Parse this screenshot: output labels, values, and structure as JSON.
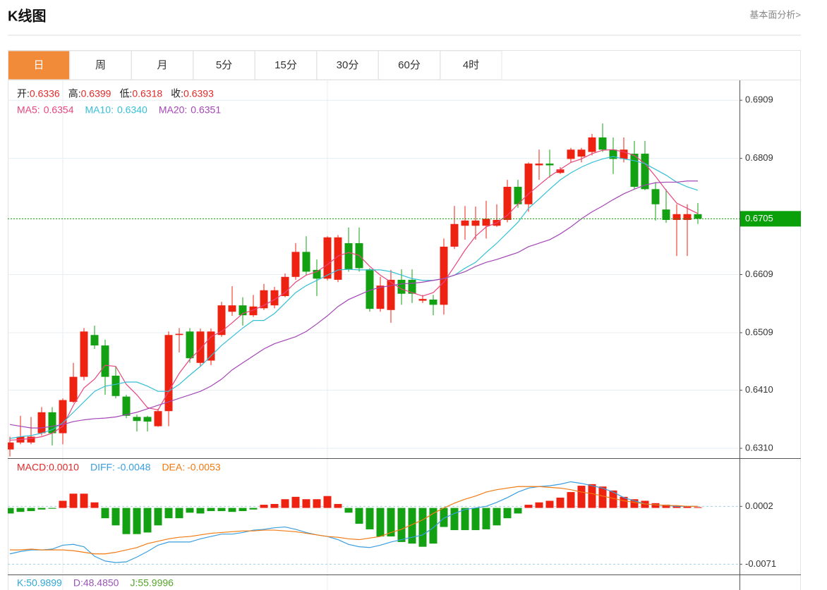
{
  "header": {
    "title": "K线图",
    "link": "基本面分析>"
  },
  "tabs": {
    "items": [
      "日",
      "周",
      "月",
      "5分",
      "15分",
      "30分",
      "60分",
      "4时"
    ],
    "active": 0,
    "active_color": "#f18b3a"
  },
  "chart_data": [
    {
      "type": "candlestick",
      "readout": [
        {
          "name": "开:",
          "value": 0.6336
        },
        {
          "name": "高:",
          "value": 0.6399
        },
        {
          "name": "低:",
          "value": 0.6318
        },
        {
          "name": "收:",
          "value": 0.6393
        }
      ],
      "readout_color": "#e02a2a",
      "up_color": "#ee2211",
      "down_color": "#13a013",
      "ylim": [
        0.6293,
        0.6942
      ],
      "yticks": [
        0.6909,
        0.6809,
        0.6609,
        0.6509,
        {
          "value": 0.641,
          "label": "0.6410"
        },
        {
          "value": 0.631,
          "label": "0.6310"
        }
      ],
      "grid": true,
      "last_price": 0.6705,
      "last_price_color": "#0aa00a",
      "open": [
        0.6308,
        0.632,
        0.632,
        0.6336,
        0.6372,
        0.6336,
        0.639,
        0.6433,
        0.6505,
        0.6487,
        0.6435,
        0.6399,
        0.6364,
        0.6364,
        0.6348,
        0.6374,
        0.6505,
        0.6511,
        0.6457,
        0.6461,
        0.6505,
        0.6545,
        0.6556,
        0.6539,
        0.6551,
        0.6556,
        0.6572,
        0.6605,
        0.6648,
        0.6617,
        0.6602,
        0.66,
        0.6663,
        0.6663,
        0.6618,
        0.655,
        0.6548,
        0.66,
        0.66,
        0.6564,
        0.6566,
        0.6557,
        0.6657,
        0.6693,
        0.6693,
        0.6693,
        0.6693,
        0.6703,
        0.676,
        0.673,
        0.6797,
        0.68,
        0.6784,
        0.6808,
        0.6812,
        0.682,
        0.6845,
        0.6824,
        0.6808,
        0.6817,
        0.6817,
        0.6756,
        0.6721,
        0.6703,
        0.6703,
        0.6713
      ],
      "high": [
        0.633,
        0.6366,
        0.6364,
        0.6381,
        0.6381,
        0.6396,
        0.6457,
        0.6517,
        0.6521,
        0.6497,
        0.6451,
        0.6402,
        0.6368,
        0.6366,
        0.6378,
        0.6511,
        0.6517,
        0.6517,
        0.6516,
        0.6516,
        0.6562,
        0.6589,
        0.657,
        0.6574,
        0.6593,
        0.6588,
        0.6611,
        0.6663,
        0.6675,
        0.6635,
        0.6675,
        0.6677,
        0.669,
        0.669,
        0.662,
        0.6605,
        0.6617,
        0.6618,
        0.6618,
        0.6574,
        0.6574,
        0.6671,
        0.6727,
        0.6727,
        0.6726,
        0.6736,
        0.673,
        0.6772,
        0.6772,
        0.6802,
        0.6824,
        0.6824,
        0.6794,
        0.6827,
        0.6827,
        0.6851,
        0.6869,
        0.6845,
        0.6845,
        0.6839,
        0.6839,
        0.6768,
        0.6756,
        0.673,
        0.673,
        0.6732
      ],
      "low": [
        0.6296,
        0.6317,
        0.6317,
        0.6332,
        0.6315,
        0.6317,
        0.6388,
        0.6427,
        0.6481,
        0.6402,
        0.6396,
        0.6362,
        0.6339,
        0.6339,
        0.6347,
        0.6348,
        0.6475,
        0.6457,
        0.6451,
        0.6453,
        0.6502,
        0.6538,
        0.6521,
        0.6536,
        0.6548,
        0.6551,
        0.657,
        0.66,
        0.6608,
        0.6572,
        0.6599,
        0.6596,
        0.6614,
        0.6614,
        0.6545,
        0.6545,
        0.6526,
        0.6557,
        0.656,
        0.656,
        0.6539,
        0.654,
        0.6653,
        0.6669,
        0.6669,
        0.6671,
        0.6691,
        0.6699,
        0.6724,
        0.6717,
        0.6772,
        0.6776,
        0.6782,
        0.6802,
        0.6802,
        0.6814,
        0.682,
        0.6782,
        0.6802,
        0.6756,
        0.6754,
        0.6702,
        0.6698,
        0.6641,
        0.6641,
        0.6696
      ],
      "close": [
        0.632,
        0.633,
        0.633,
        0.6372,
        0.6336,
        0.6393,
        0.6433,
        0.6511,
        0.6487,
        0.6433,
        0.64,
        0.6366,
        0.6357,
        0.6356,
        0.6374,
        0.6505,
        0.6507,
        0.6465,
        0.6511,
        0.6511,
        0.6556,
        0.6556,
        0.6539,
        0.6554,
        0.6582,
        0.6582,
        0.6605,
        0.6648,
        0.6614,
        0.6602,
        0.6673,
        0.6673,
        0.6618,
        0.662,
        0.655,
        0.659,
        0.66,
        0.6576,
        0.6576,
        0.6567,
        0.6557,
        0.6657,
        0.6696,
        0.6702,
        0.6702,
        0.6705,
        0.6703,
        0.676,
        0.673,
        0.68,
        0.68,
        0.6797,
        0.679,
        0.6824,
        0.6824,
        0.6845,
        0.6824,
        0.6808,
        0.6824,
        0.676,
        0.6756,
        0.673,
        0.6703,
        0.6713,
        0.6713,
        0.6705
      ],
      "series": [
        {
          "name": "MA5:",
          "color": "#e8457e",
          "readout": 0.6354,
          "values": [
            0.6324,
            0.6325,
            0.6327,
            0.633,
            0.6336,
            0.6348,
            0.6384,
            0.6414,
            0.6429,
            0.6453,
            0.6451,
            0.642,
            0.6402,
            0.638,
            0.6376,
            0.6408,
            0.6439,
            0.6463,
            0.6481,
            0.6502,
            0.6511,
            0.6526,
            0.6542,
            0.6548,
            0.6556,
            0.6566,
            0.6578,
            0.6596,
            0.6608,
            0.6614,
            0.6626,
            0.6641,
            0.6647,
            0.6642,
            0.6623,
            0.6608,
            0.6596,
            0.6584,
            0.6578,
            0.6572,
            0.6578,
            0.6596,
            0.6623,
            0.6651,
            0.6675,
            0.6691,
            0.6698,
            0.6711,
            0.673,
            0.6748,
            0.6763,
            0.6778,
            0.679,
            0.6802,
            0.6808,
            0.6817,
            0.6823,
            0.6824,
            0.682,
            0.6814,
            0.68,
            0.6778,
            0.6754,
            0.6732,
            0.6723,
            0.6714
          ]
        },
        {
          "name": "MA10:",
          "color": "#35bfd6",
          "readout": {
            "value": 0.634,
            "label": "0.6340"
          },
          "values": [
            0.6327,
            0.633,
            0.6332,
            0.6336,
            0.6342,
            0.6354,
            0.6372,
            0.639,
            0.6408,
            0.6417,
            0.642,
            0.6424,
            0.6424,
            0.6417,
            0.6408,
            0.6408,
            0.642,
            0.6436,
            0.6451,
            0.6469,
            0.6487,
            0.6502,
            0.6517,
            0.653,
            0.653,
            0.6542,
            0.656,
            0.6578,
            0.659,
            0.6599,
            0.6608,
            0.6617,
            0.6618,
            0.6617,
            0.6617,
            0.6617,
            0.6614,
            0.6608,
            0.6602,
            0.6599,
            0.6599,
            0.6602,
            0.6608,
            0.662,
            0.663,
            0.6647,
            0.6663,
            0.6681,
            0.6699,
            0.6723,
            0.6739,
            0.6756,
            0.6772,
            0.6784,
            0.6794,
            0.6802,
            0.6808,
            0.6812,
            0.6808,
            0.6805,
            0.68,
            0.679,
            0.678,
            0.6768,
            0.676,
            0.6754
          ]
        },
        {
          "name": "MA20:",
          "color": "#a446b6",
          "readout": 0.6351,
          "values": [
            0.6351,
            0.6348,
            0.6345,
            0.6345,
            0.6348,
            0.6351,
            0.6356,
            0.6359,
            0.6361,
            0.6362,
            0.6364,
            0.6368,
            0.6372,
            0.6378,
            0.6384,
            0.639,
            0.6396,
            0.6402,
            0.6408,
            0.6417,
            0.6429,
            0.6445,
            0.6457,
            0.6469,
            0.6481,
            0.649,
            0.6496,
            0.6502,
            0.6511,
            0.6524,
            0.6538,
            0.6554,
            0.6566,
            0.6574,
            0.6582,
            0.6587,
            0.659,
            0.6593,
            0.6594,
            0.6596,
            0.6599,
            0.6602,
            0.6608,
            0.6614,
            0.6623,
            0.663,
            0.6635,
            0.6641,
            0.6647,
            0.6657,
            0.6663,
            0.6669,
            0.6679,
            0.6691,
            0.6705,
            0.6717,
            0.6727,
            0.6738,
            0.6748,
            0.6756,
            0.6763,
            0.6767,
            0.6768,
            0.6768,
            0.677,
            0.677
          ]
        }
      ]
    },
    {
      "type": "macd",
      "ylim": [
        -0.0084,
        0.0061
      ],
      "yticks": [
        0.0002,
        -0.0071
      ],
      "grid": true,
      "histogram": {
        "name": "MACD:",
        "color": "#e02a2a",
        "readout": {
          "value": 0.001,
          "label": "0.0010"
        },
        "up_color": "#ee2211",
        "down_color": "#13a013",
        "values": [
          -0.0007,
          -0.0005,
          -0.0004,
          -0.0002,
          -0.0001,
          0.0009,
          0.0018,
          0.0018,
          0.0007,
          -0.0013,
          -0.0022,
          -0.0033,
          -0.0033,
          -0.0031,
          -0.0022,
          -0.0013,
          -0.0013,
          -0.0006,
          -0.0007,
          -0.0004,
          -0.0004,
          -0.0005,
          -0.0004,
          -0.0002,
          0.0004,
          0.0005,
          0.0011,
          0.0014,
          0.0011,
          0.0011,
          0.0015,
          0.0005,
          -0.0006,
          -0.002,
          -0.0027,
          -0.0036,
          -0.0036,
          -0.0043,
          -0.0045,
          -0.0049,
          -0.0045,
          -0.0024,
          -0.0028,
          -0.0028,
          -0.0028,
          -0.0027,
          -0.0022,
          -0.0013,
          -0.0007,
          0.0004,
          0.0007,
          0.0009,
          0.0013,
          0.002,
          0.0028,
          0.003,
          0.0027,
          0.0022,
          0.0014,
          0.0011,
          0.0009,
          0.0006,
          0.0004,
          0.0003,
          0.0002,
          0.0001
        ]
      },
      "series": [
        {
          "name": "DIFF:",
          "color": "#3a9ee0",
          "readout": -0.0048,
          "values": [
            -0.0058,
            -0.0055,
            -0.0053,
            -0.0053,
            -0.0052,
            -0.0047,
            -0.0046,
            -0.0049,
            -0.0061,
            -0.0067,
            -0.0069,
            -0.0068,
            -0.0062,
            -0.0055,
            -0.0047,
            -0.0043,
            -0.0043,
            -0.0043,
            -0.0039,
            -0.0036,
            -0.0033,
            -0.0033,
            -0.0031,
            -0.0028,
            -0.0027,
            -0.0025,
            -0.0024,
            -0.0027,
            -0.0031,
            -0.0034,
            -0.0036,
            -0.004,
            -0.0046,
            -0.0049,
            -0.005,
            -0.0047,
            -0.0043,
            -0.004,
            -0.0037,
            -0.0034,
            -0.0025,
            -0.0013,
            -0.0007,
            -0.0002,
            0,
            0.0002,
            0.0007,
            0.0013,
            0.002,
            0.0025,
            0.0027,
            0.0028,
            0.003,
            0.0033,
            0.0031,
            0.0028,
            0.0025,
            0.002,
            0.0013,
            0.0009,
            0.0005,
            0.0004,
            0.0003,
            0.0002,
            0.0002,
            0.0002
          ]
        },
        {
          "name": "DEA:",
          "color": "#f27a12",
          "readout": -0.0053,
          "values": [
            -0.0053,
            -0.0053,
            -0.0052,
            -0.0053,
            -0.0053,
            -0.0053,
            -0.0054,
            -0.0056,
            -0.0058,
            -0.0058,
            -0.0056,
            -0.0053,
            -0.005,
            -0.0045,
            -0.0042,
            -0.0039,
            -0.0037,
            -0.0036,
            -0.0034,
            -0.0032,
            -0.0031,
            -0.003,
            -0.0029,
            -0.0029,
            -0.0028,
            -0.0028,
            -0.0029,
            -0.003,
            -0.0032,
            -0.0034,
            -0.0036,
            -0.0037,
            -0.0039,
            -0.004,
            -0.0038,
            -0.0036,
            -0.0031,
            -0.0027,
            -0.0021,
            -0.0015,
            -0.0007,
            0,
            0.0006,
            0.0011,
            0.0015,
            0.002,
            0.0023,
            0.0025,
            0.0027,
            0.0027,
            0.0027,
            0.0026,
            0.0025,
            0.0023,
            0.002,
            0.0018,
            0.0015,
            0.0012,
            0.0009,
            0.0007,
            0.0005,
            0.0004,
            0.0003,
            0.0003,
            0.0002,
            0.0002
          ]
        }
      ]
    }
  ],
  "kdj": {
    "readout": [
      {
        "name": "K:",
        "color": "#2fa8d8",
        "value": 50.9899
      },
      {
        "name": "D:",
        "color": "#9a54b8",
        "value": {
          "value": 48.485,
          "label": "48.4850"
        }
      },
      {
        "name": "J:",
        "color": "#55a52a",
        "value": 55.9996
      }
    ]
  }
}
